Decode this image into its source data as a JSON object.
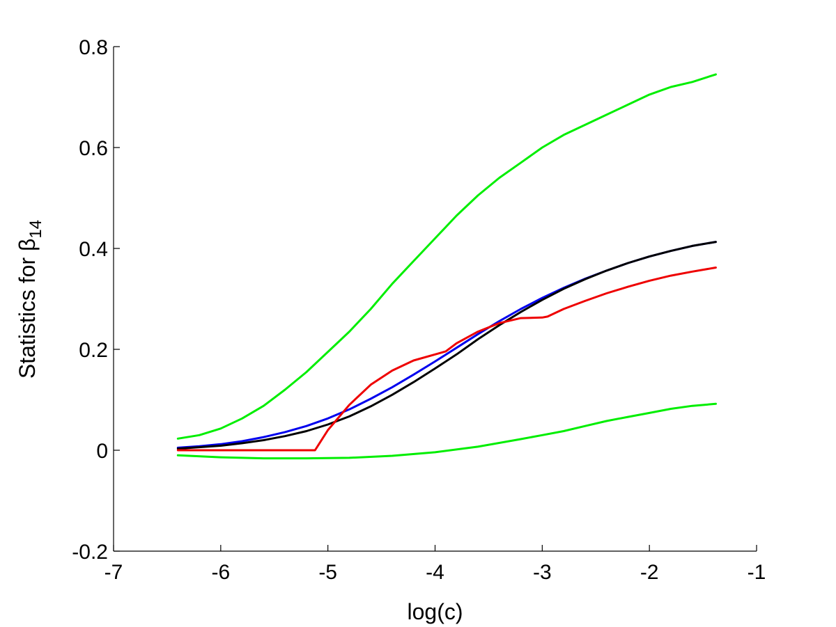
{
  "chart_data": {
    "type": "line",
    "title": "",
    "xlabel": "log(c)",
    "ylabel": {
      "text": "Statistics for ",
      "symbol": "β",
      "subscript": "14"
    },
    "xlim": [
      -7,
      -1
    ],
    "ylim": [
      -0.2,
      0.8
    ],
    "xticks": [
      -7,
      -6,
      -5,
      -4,
      -3,
      -2,
      -1
    ],
    "xtick_labels": [
      "-7",
      "-6",
      "-5",
      "-4",
      "-3",
      "-2",
      "-1"
    ],
    "yticks": [
      -0.2,
      0,
      0.2,
      0.4,
      0.6,
      0.8
    ],
    "ytick_labels": [
      "-0.2",
      "0",
      "0.2",
      "0.4",
      "0.6",
      "0.8"
    ],
    "grid": false,
    "legend": "none",
    "series": [
      {
        "color": "#00ee00",
        "x": [
          -6.4,
          -6.2,
          -6.0,
          -5.8,
          -5.6,
          -5.4,
          -5.2,
          -5.0,
          -4.8,
          -4.6,
          -4.4,
          -4.2,
          -4.0,
          -3.8,
          -3.6,
          -3.4,
          -3.2,
          -3.0,
          -2.8,
          -2.6,
          -2.4,
          -2.2,
          -2.0,
          -1.8,
          -1.6,
          -1.38
        ],
        "y": [
          0.023,
          0.03,
          0.043,
          0.063,
          0.088,
          0.12,
          0.155,
          0.195,
          0.235,
          0.28,
          0.33,
          0.375,
          0.42,
          0.465,
          0.505,
          0.54,
          0.57,
          0.6,
          0.625,
          0.645,
          0.665,
          0.685,
          0.705,
          0.72,
          0.73,
          0.745
        ]
      },
      {
        "color": "#00ee00",
        "x": [
          -6.4,
          -6.0,
          -5.6,
          -5.2,
          -4.8,
          -4.4,
          -4.0,
          -3.6,
          -3.2,
          -3.0,
          -2.8,
          -2.6,
          -2.4,
          -2.2,
          -2.0,
          -1.8,
          -1.6,
          -1.38
        ],
        "y": [
          -0.01,
          -0.014,
          -0.016,
          -0.016,
          -0.015,
          -0.011,
          -0.004,
          0.007,
          0.022,
          0.03,
          0.038,
          0.048,
          0.058,
          0.066,
          0.074,
          0.082,
          0.088,
          0.092
        ]
      },
      {
        "color": "#0000ee",
        "x": [
          -6.4,
          -6.2,
          -6.0,
          -5.8,
          -5.6,
          -5.4,
          -5.2,
          -5.0,
          -4.8,
          -4.6,
          -4.4,
          -4.2,
          -4.0,
          -3.8,
          -3.6,
          -3.4,
          -3.2,
          -3.0,
          -2.8,
          -2.6,
          -2.4,
          -2.2,
          -2.0,
          -1.8,
          -1.6,
          -1.38
        ],
        "y": [
          0.005,
          0.008,
          0.012,
          0.018,
          0.026,
          0.036,
          0.048,
          0.063,
          0.081,
          0.102,
          0.125,
          0.15,
          0.176,
          0.203,
          0.23,
          0.256,
          0.28,
          0.302,
          0.322,
          0.34,
          0.356,
          0.371,
          0.384,
          0.395,
          0.405,
          0.413
        ]
      },
      {
        "color": "#000000",
        "x": [
          -6.4,
          -6.2,
          -6.0,
          -5.8,
          -5.6,
          -5.4,
          -5.2,
          -5.0,
          -4.8,
          -4.6,
          -4.4,
          -4.2,
          -4.0,
          -3.8,
          -3.6,
          -3.4,
          -3.2,
          -3.0,
          -2.8,
          -2.6,
          -2.4,
          -2.2,
          -2.0,
          -1.8,
          -1.6,
          -1.38
        ],
        "y": [
          0.003,
          0.006,
          0.009,
          0.014,
          0.02,
          0.028,
          0.038,
          0.051,
          0.067,
          0.087,
          0.11,
          0.135,
          0.162,
          0.19,
          0.22,
          0.248,
          0.274,
          0.298,
          0.32,
          0.339,
          0.356,
          0.371,
          0.384,
          0.395,
          0.405,
          0.413
        ]
      },
      {
        "color": "#ee0000",
        "x": [
          -6.4,
          -5.6,
          -5.12,
          -5.0,
          -4.8,
          -4.6,
          -4.4,
          -4.2,
          -4.0,
          -3.9,
          -3.8,
          -3.6,
          -3.4,
          -3.2,
          -3.0,
          -2.95,
          -2.8,
          -2.6,
          -2.4,
          -2.2,
          -2.0,
          -1.8,
          -1.6,
          -1.38
        ],
        "y": [
          0.0,
          0.0,
          0.0,
          0.04,
          0.09,
          0.13,
          0.158,
          0.178,
          0.19,
          0.196,
          0.212,
          0.235,
          0.252,
          0.262,
          0.263,
          0.265,
          0.28,
          0.296,
          0.311,
          0.324,
          0.336,
          0.346,
          0.354,
          0.362
        ]
      }
    ]
  }
}
